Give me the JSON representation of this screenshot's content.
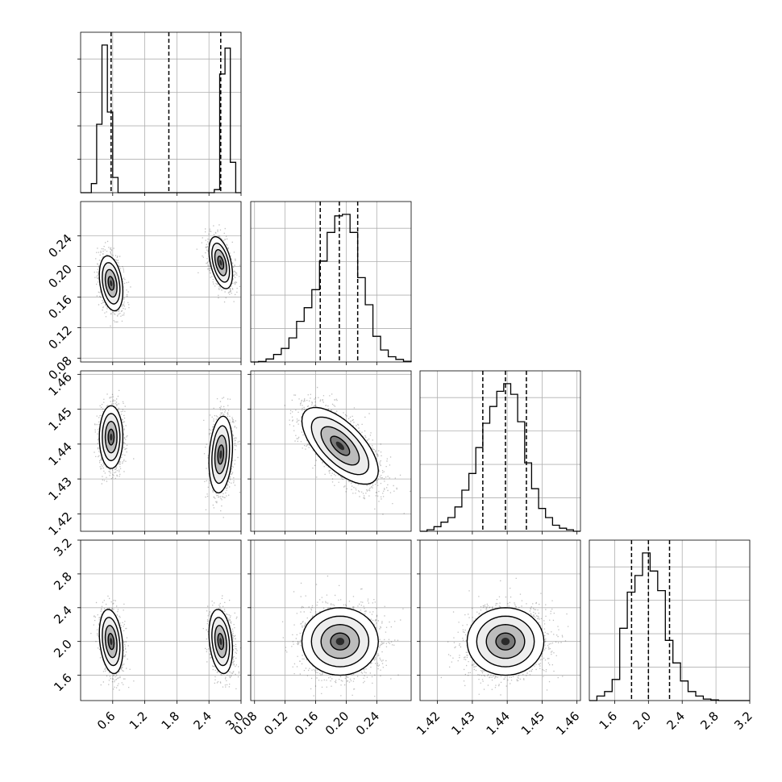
{
  "chart_data": {
    "type": "corner",
    "grid": true,
    "parameters": [
      {
        "index": 0,
        "range": [
          0.0,
          3.0
        ],
        "ticks": [
          0.6,
          1.2,
          1.8,
          2.4,
          3.0
        ],
        "tick_labels": [
          "0.6",
          "1.2",
          "1.8",
          "2.4",
          "3.0"
        ],
        "quantiles": [
          0.57,
          1.65,
          2.62
        ],
        "histogram": {
          "bin_edges": [
            0.0,
            0.1,
            0.2,
            0.3,
            0.4,
            0.5,
            0.6,
            0.7,
            0.8,
            0.9,
            1.0,
            1.1,
            1.2,
            1.3,
            1.4,
            1.5,
            1.6,
            1.7,
            1.8,
            1.9,
            2.0,
            2.1,
            2.2,
            2.3,
            2.4,
            2.5,
            2.6,
            2.7,
            2.8,
            2.9,
            3.0
          ],
          "counts": [
            0,
            0,
            0.06,
            0.45,
            0.97,
            0.53,
            0.1,
            0,
            0,
            0,
            0,
            0,
            0,
            0,
            0,
            0,
            0,
            0,
            0,
            0,
            0,
            0,
            0,
            0,
            0,
            0.02,
            0.78,
            0.95,
            0.2,
            0
          ]
        },
        "mode_centers": [
          0.57,
          2.62
        ]
      },
      {
        "index": 1,
        "range": [
          0.075,
          0.285
        ],
        "ticks": [
          0.08,
          0.12,
          0.16,
          0.2,
          0.24
        ],
        "tick_labels": [
          "0.08",
          "0.12",
          "0.16",
          "0.20",
          "0.24"
        ],
        "quantiles": [
          0.166,
          0.191,
          0.215
        ],
        "histogram": {
          "bin_edges": [
            0.075,
            0.085,
            0.095,
            0.105,
            0.115,
            0.125,
            0.135,
            0.145,
            0.155,
            0.165,
            0.175,
            0.185,
            0.195,
            0.205,
            0.215,
            0.225,
            0.235,
            0.245,
            0.255,
            0.265,
            0.275,
            0.285
          ],
          "counts": [
            0,
            0.003,
            0.02,
            0.05,
            0.09,
            0.16,
            0.27,
            0.36,
            0.48,
            0.67,
            0.86,
            0.97,
            0.98,
            0.86,
            0.56,
            0.38,
            0.17,
            0.08,
            0.035,
            0.017,
            0.005
          ]
        }
      },
      {
        "index": 2,
        "range": [
          1.415,
          1.461
        ],
        "ticks": [
          1.42,
          1.43,
          1.44,
          1.45,
          1.46
        ],
        "tick_labels": [
          "1.42",
          "1.43",
          "1.44",
          "1.45",
          "1.46"
        ],
        "quantiles": [
          1.433,
          1.4395,
          1.4455
        ],
        "histogram": {
          "bin_edges": [
            1.415,
            1.417,
            1.419,
            1.421,
            1.423,
            1.425,
            1.427,
            1.429,
            1.431,
            1.433,
            1.435,
            1.437,
            1.439,
            1.441,
            1.443,
            1.445,
            1.447,
            1.449,
            1.451,
            1.453,
            1.455,
            1.457,
            1.459,
            1.461
          ],
          "counts": [
            0,
            0.01,
            0.03,
            0.06,
            0.09,
            0.16,
            0.27,
            0.38,
            0.55,
            0.71,
            0.82,
            0.92,
            0.97,
            0.9,
            0.72,
            0.45,
            0.28,
            0.15,
            0.09,
            0.04,
            0.02,
            0.01,
            0
          ]
        }
      },
      {
        "index": 3,
        "range": [
          1.3,
          3.2
        ],
        "ticks": [
          1.6,
          2.0,
          2.4,
          2.8,
          3.2
        ],
        "tick_labels": [
          "1.6",
          "2.0",
          "2.4",
          "2.8",
          "3.2"
        ],
        "quantiles": [
          1.8,
          2.0,
          2.25
        ],
        "histogram": {
          "bin_edges": [
            1.3,
            1.39,
            1.48,
            1.57,
            1.66,
            1.75,
            1.84,
            1.93,
            2.02,
            2.11,
            2.2,
            2.29,
            2.38,
            2.47,
            2.56,
            2.65,
            2.74,
            2.83,
            2.92,
            3.01,
            3.1,
            3.2
          ],
          "counts": [
            0,
            0.03,
            0.06,
            0.14,
            0.48,
            0.72,
            0.83,
            0.98,
            0.86,
            0.73,
            0.4,
            0.25,
            0.13,
            0.06,
            0.03,
            0.01,
            0.005,
            0,
            0,
            0,
            0
          ]
        }
      }
    ],
    "pairs": [
      {
        "row": 1,
        "col": 0,
        "components": [
          {
            "mean": [
              0.57,
              0.178
            ],
            "sd": [
              0.11,
              0.018
            ],
            "corr": -0.3
          },
          {
            "mean": [
              2.62,
              0.205
            ],
            "sd": [
              0.11,
              0.017
            ],
            "corr": -0.45
          }
        ]
      },
      {
        "row": 2,
        "col": 0,
        "components": [
          {
            "mean": [
              0.57,
              1.442
            ],
            "sd": [
              0.11,
              0.0045
            ],
            "corr": 0.0
          },
          {
            "mean": [
              2.62,
              1.437
            ],
            "sd": [
              0.11,
              0.0055
            ],
            "corr": 0.2
          }
        ]
      },
      {
        "row": 3,
        "col": 0,
        "components": [
          {
            "mean": [
              0.57,
              2.0
            ],
            "sd": [
              0.11,
              0.19
            ],
            "corr": -0.25
          },
          {
            "mean": [
              2.62,
              2.0
            ],
            "sd": [
              0.11,
              0.19
            ],
            "corr": -0.25
          }
        ]
      },
      {
        "row": 2,
        "col": 1,
        "components": [
          {
            "mean": [
              0.192,
              1.4395
            ],
            "sd": [
              0.025,
              0.0055
            ],
            "corr": -0.65
          }
        ]
      },
      {
        "row": 3,
        "col": 1,
        "components": [
          {
            "mean": [
              0.192,
              2.0
            ],
            "sd": [
              0.025,
              0.2
            ],
            "corr": 0.0
          }
        ]
      },
      {
        "row": 3,
        "col": 2,
        "components": [
          {
            "mean": [
              1.4395,
              2.0
            ],
            "sd": [
              0.0055,
              0.2
            ],
            "corr": 0.0
          }
        ]
      }
    ]
  }
}
